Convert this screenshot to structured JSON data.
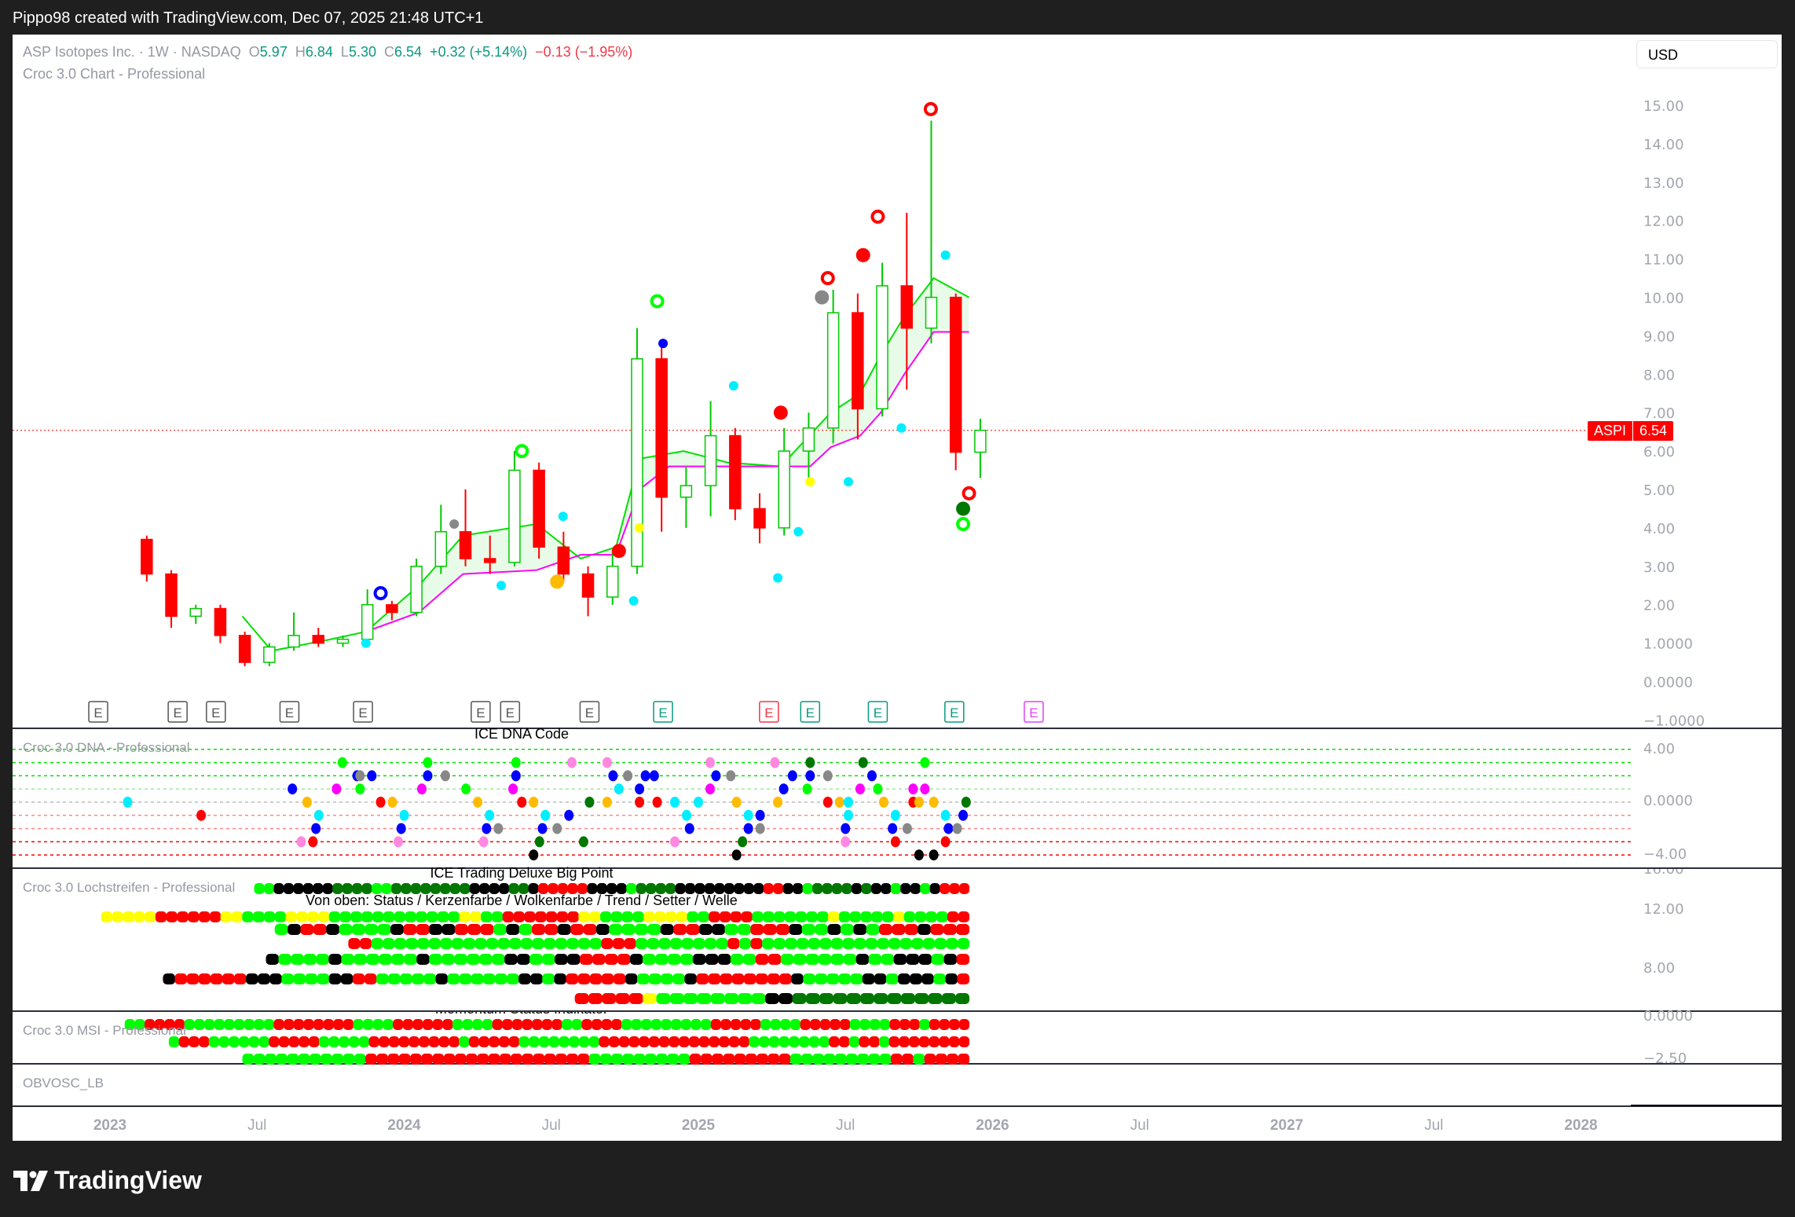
{
  "header": {
    "text": "Pippo98 created with TradingView.com, Dec 07, 2025 21:48 UTC+1"
  },
  "legend": {
    "symbol": "ASP Isotopes Inc. · 1W · NASDAQ",
    "o_label": "O",
    "o": "5.97",
    "h_label": "H",
    "h": "6.84",
    "l_label": "L",
    "l": "5.30",
    "c_label": "C",
    "c": "6.54",
    "change": "+0.32 (+5.14%)",
    "change2": "−0.13 (−1.95%)",
    "indicator": "Croc 3.0 Chart - Professional"
  },
  "currency": "USD",
  "price_tag": {
    "symbol": "ASPI",
    "price": "6.54"
  },
  "panes": {
    "dna": {
      "label": "Croc 3.0 DNA - Professional",
      "title": "ICE DNA Code",
      "ticks": [
        "4.00",
        "0.0000",
        "−4.00"
      ]
    },
    "strip": {
      "label": "Croc 3.0 Lochstreifen - Professional",
      "title": "ICE Trading Deluxe Big Point",
      "subtitle": "Von oben: Status / Kerzenfarbe / Wolkenfarbe / Trend / Setter / Welle",
      "ticks": [
        "16.00",
        "12.00",
        "8.00"
      ]
    },
    "msi": {
      "label": "Croc 3.0 MSI - Professional",
      "title": "Momentum Status Indikator",
      "ticks": [
        "0.0000",
        "−2.50"
      ]
    },
    "obv": {
      "label": "OBVOSC_LB"
    }
  },
  "brand": "TradingView",
  "colors": {
    "up": "#089981",
    "down": "#f23645",
    "candle_up": "#00c800",
    "candle_down": "#ff0000",
    "cloud_top": "#00e000",
    "cloud_bottom": "#ff00ff",
    "cloud_fill": "#e8fbe8",
    "L": "#00ff00",
    "R": "#ff0000",
    "K": "#000000",
    "D": "#007700",
    "Y": "#ffff00",
    "B": "#0000ff",
    "G": "#888888",
    "M": "#ff00ff",
    "P": "#ff88e0",
    "C": "#00eeff",
    "O": "#ffbb00"
  },
  "chart_data": {
    "type": "candlestick",
    "interval": "1W (shown approximated monthly)",
    "y_ticks": [
      "15.00",
      "14.00",
      "13.00",
      "12.00",
      "11.00",
      "10.00",
      "9.00",
      "8.00",
      "7.00",
      "6.00",
      "5.00",
      "4.00",
      "3.00",
      "2.00",
      "1.0000",
      "0.0000",
      "−1.0000"
    ],
    "ylim": [
      -1,
      15
    ],
    "x_ticks": [
      {
        "t": 2023,
        "label": "2023"
      },
      {
        "t": 2023.5,
        "label": "Jul"
      },
      {
        "t": 2024,
        "label": "2024"
      },
      {
        "t": 2024.5,
        "label": "Jul"
      },
      {
        "t": 2025,
        "label": "2025"
      },
      {
        "t": 2025.5,
        "label": "Jul"
      },
      {
        "t": 2026,
        "label": "2026"
      },
      {
        "t": 2026.5,
        "label": "Jul"
      },
      {
        "t": 2027,
        "label": "2027"
      },
      {
        "t": 2027.5,
        "label": "Jul"
      },
      {
        "t": 2028,
        "label": "2028"
      }
    ],
    "last_price": 6.54,
    "ohlc": [
      [
        "2023-02",
        3.7,
        3.8,
        2.6,
        2.8
      ],
      [
        "2023-03",
        2.8,
        2.9,
        1.4,
        1.7
      ],
      [
        "2023-04",
        1.7,
        2.0,
        1.5,
        1.9
      ],
      [
        "2023-05",
        1.9,
        2.0,
        1.0,
        1.2
      ],
      [
        "2023-06",
        1.2,
        1.3,
        0.4,
        0.5
      ],
      [
        "2023-07",
        0.5,
        1.0,
        0.4,
        0.9
      ],
      [
        "2023-08",
        0.9,
        1.8,
        0.8,
        1.2
      ],
      [
        "2023-09",
        1.2,
        1.4,
        0.9,
        1.0
      ],
      [
        "2023-10",
        1.0,
        1.2,
        0.9,
        1.1
      ],
      [
        "2023-11",
        1.1,
        2.4,
        1.0,
        2.0
      ],
      [
        "2023-12",
        2.0,
        2.1,
        1.6,
        1.8
      ],
      [
        "2024-01",
        1.8,
        3.2,
        1.7,
        3.0
      ],
      [
        "2024-02",
        3.0,
        4.6,
        2.8,
        3.9
      ],
      [
        "2024-03",
        3.9,
        5.0,
        3.0,
        3.2
      ],
      [
        "2024-04",
        3.2,
        3.8,
        2.8,
        3.1
      ],
      [
        "2024-05",
        3.1,
        6.0,
        3.0,
        5.5
      ],
      [
        "2024-06",
        5.5,
        5.7,
        3.2,
        3.5
      ],
      [
        "2024-07",
        3.5,
        3.9,
        2.6,
        2.8
      ],
      [
        "2024-08",
        2.8,
        3.0,
        1.7,
        2.2
      ],
      [
        "2024-09",
        2.2,
        3.4,
        2.0,
        3.0
      ],
      [
        "2024-10",
        3.0,
        9.2,
        2.8,
        8.4
      ],
      [
        "2024-11",
        8.4,
        8.9,
        3.9,
        4.8
      ],
      [
        "2024-12",
        4.8,
        5.6,
        4.0,
        5.1
      ],
      [
        "2025-01",
        5.1,
        7.3,
        4.3,
        6.4
      ],
      [
        "2025-02",
        6.4,
        6.6,
        4.2,
        4.5
      ],
      [
        "2025-03",
        4.5,
        4.9,
        3.6,
        4.0
      ],
      [
        "2025-04",
        4.0,
        6.6,
        3.8,
        6.0
      ],
      [
        "2025-05",
        6.0,
        7.0,
        5.2,
        6.6
      ],
      [
        "2025-06",
        6.6,
        10.2,
        6.2,
        9.6
      ],
      [
        "2025-07",
        9.6,
        10.1,
        6.3,
        7.1
      ],
      [
        "2025-08",
        7.1,
        10.9,
        6.9,
        10.3
      ],
      [
        "2025-09",
        10.3,
        12.2,
        7.6,
        9.2
      ],
      [
        "2025-10",
        9.2,
        14.6,
        8.8,
        10.0
      ],
      [
        "2025-11",
        10.0,
        10.1,
        5.5,
        5.97
      ],
      [
        "2025-12",
        5.97,
        6.84,
        5.3,
        6.54
      ]
    ],
    "cloud_top": [
      [
        2023.45,
        1.7
      ],
      [
        2023.55,
        0.8
      ],
      [
        2023.75,
        1.1
      ],
      [
        2023.87,
        1.3
      ],
      [
        2024.05,
        2.5
      ],
      [
        2024.2,
        3.8
      ],
      [
        2024.45,
        4.1
      ],
      [
        2024.6,
        3.2
      ],
      [
        2024.72,
        3.5
      ],
      [
        2024.8,
        5.8
      ],
      [
        2024.95,
        6.0
      ],
      [
        2025.1,
        5.7
      ],
      [
        2025.28,
        5.6
      ],
      [
        2025.45,
        7.0
      ],
      [
        2025.55,
        7.5
      ],
      [
        2025.62,
        8.5
      ],
      [
        2025.7,
        9.5
      ],
      [
        2025.8,
        10.5
      ],
      [
        2025.92,
        10.0
      ]
    ],
    "cloud_bottom": [
      [
        2023.87,
        1.3
      ],
      [
        2024.05,
        1.8
      ],
      [
        2024.2,
        2.8
      ],
      [
        2024.45,
        2.9
      ],
      [
        2024.6,
        3.3
      ],
      [
        2024.72,
        3.3
      ],
      [
        2024.8,
        5.0
      ],
      [
        2024.9,
        5.6
      ],
      [
        2025.38,
        5.6
      ],
      [
        2025.45,
        6.1
      ],
      [
        2025.55,
        6.4
      ],
      [
        2025.62,
        7.0
      ],
      [
        2025.7,
        8.0
      ],
      [
        2025.8,
        9.1
      ],
      [
        2025.92,
        9.1
      ]
    ],
    "markers": [
      [
        2023.92,
        2.3,
        "B",
        "ring"
      ],
      [
        2024.17,
        4.1,
        "G",
        "dot"
      ],
      [
        2024.4,
        6.0,
        "L",
        "ring"
      ],
      [
        2024.52,
        2.6,
        "O",
        "big"
      ],
      [
        2024.73,
        3.4,
        "R",
        "big"
      ],
      [
        2024.86,
        9.9,
        "L",
        "ring"
      ],
      [
        2024.88,
        8.8,
        "B",
        "dot"
      ],
      [
        2025.28,
        7.0,
        "R",
        "big"
      ],
      [
        2025.42,
        10.0,
        "G",
        "big"
      ],
      [
        2025.44,
        10.5,
        "R",
        "ring"
      ],
      [
        2025.56,
        11.1,
        "R",
        "big"
      ],
      [
        2025.61,
        12.1,
        "R",
        "ring"
      ],
      [
        2025.79,
        14.9,
        "R",
        "ring"
      ],
      [
        2025.84,
        11.1,
        "C",
        "dot"
      ],
      [
        2023.87,
        1.0,
        "C",
        "dot"
      ],
      [
        2024.33,
        2.5,
        "C",
        "dot"
      ],
      [
        2024.54,
        4.3,
        "C",
        "dot"
      ],
      [
        2024.78,
        2.1,
        "C",
        "dot"
      ],
      [
        2025.12,
        7.7,
        "C",
        "dot"
      ],
      [
        2025.27,
        2.7,
        "C",
        "dot"
      ],
      [
        2025.34,
        3.9,
        "C",
        "dot"
      ],
      [
        2025.51,
        5.2,
        "C",
        "dot"
      ],
      [
        2025.69,
        6.6,
        "C",
        "dot"
      ],
      [
        2025.38,
        5.2,
        "Y",
        "dot"
      ],
      [
        2024.8,
        4.0,
        "Y",
        "dot"
      ],
      [
        2025.92,
        4.9,
        "R",
        "ring"
      ],
      [
        2025.9,
        4.5,
        "D",
        "big"
      ],
      [
        2025.9,
        4.1,
        "L",
        "ring"
      ]
    ],
    "earnings": [
      [
        2022.96,
        "E",
        "#555"
      ],
      [
        2023.23,
        "E",
        "#555"
      ],
      [
        2023.36,
        "E",
        "#555"
      ],
      [
        2023.61,
        "E",
        "#555"
      ],
      [
        2023.86,
        "E",
        "#555"
      ],
      [
        2024.26,
        "E",
        "#555"
      ],
      [
        2024.36,
        "E",
        "#555"
      ],
      [
        2024.63,
        "E",
        "#555"
      ],
      [
        2024.88,
        "E",
        "#089981"
      ],
      [
        2025.24,
        "E",
        "#f23645"
      ],
      [
        2025.38,
        "E",
        "#089981"
      ],
      [
        2025.61,
        "E",
        "#089981"
      ],
      [
        2025.87,
        "E",
        "#089981"
      ],
      [
        2026.14,
        "E",
        "#e040fb"
      ]
    ],
    "dna_dots": [
      [
        2023.79,
        3,
        "L"
      ],
      [
        2024.08,
        3,
        "L"
      ],
      [
        2024.38,
        3,
        "L"
      ],
      [
        2024.57,
        3,
        "P"
      ],
      [
        2024.69,
        3,
        "P"
      ],
      [
        2025.04,
        3,
        "P"
      ],
      [
        2025.26,
        3,
        "P"
      ],
      [
        2025.38,
        3,
        "D"
      ],
      [
        2025.56,
        3,
        "D"
      ],
      [
        2025.77,
        3,
        "L"
      ],
      [
        2023.84,
        2,
        "B"
      ],
      [
        2023.89,
        2,
        "B"
      ],
      [
        2023.85,
        2,
        "G"
      ],
      [
        2024.08,
        2,
        "B"
      ],
      [
        2024.14,
        2,
        "G"
      ],
      [
        2024.38,
        2,
        "B"
      ],
      [
        2024.71,
        2,
        "B"
      ],
      [
        2024.76,
        2,
        "G"
      ],
      [
        2024.82,
        2,
        "B"
      ],
      [
        2024.85,
        2,
        "B"
      ],
      [
        2025.06,
        2,
        "B"
      ],
      [
        2025.11,
        2,
        "G"
      ],
      [
        2025.32,
        2,
        "B"
      ],
      [
        2025.38,
        2,
        "B"
      ],
      [
        2025.44,
        2,
        "G"
      ],
      [
        2025.59,
        2,
        "B"
      ],
      [
        2023.62,
        1,
        "B"
      ],
      [
        2023.77,
        1,
        "M"
      ],
      [
        2023.85,
        1,
        "L"
      ],
      [
        2024.06,
        1,
        "M"
      ],
      [
        2024.21,
        1,
        "L"
      ],
      [
        2024.37,
        1,
        "M"
      ],
      [
        2024.73,
        1,
        "C"
      ],
      [
        2024.8,
        1,
        "B"
      ],
      [
        2025.04,
        1,
        "M"
      ],
      [
        2025.29,
        1,
        "B"
      ],
      [
        2025.37,
        1,
        "L"
      ],
      [
        2025.55,
        1,
        "M"
      ],
      [
        2025.61,
        1,
        "L"
      ],
      [
        2025.73,
        1,
        "M"
      ],
      [
        2025.77,
        1,
        "M"
      ],
      [
        2023.06,
        0,
        "C"
      ],
      [
        2023.67,
        0,
        "O"
      ],
      [
        2023.92,
        0,
        "R"
      ],
      [
        2023.96,
        0,
        "O"
      ],
      [
        2024.25,
        0,
        "O"
      ],
      [
        2024.4,
        0,
        "R"
      ],
      [
        2024.44,
        0,
        "O"
      ],
      [
        2024.63,
        0,
        "D"
      ],
      [
        2024.69,
        0,
        "O"
      ],
      [
        2024.8,
        0,
        "R"
      ],
      [
        2024.86,
        0,
        "R"
      ],
      [
        2024.92,
        0,
        "C"
      ],
      [
        2025.0,
        0,
        "C"
      ],
      [
        2025.13,
        0,
        "O"
      ],
      [
        2025.27,
        0,
        "O"
      ],
      [
        2025.44,
        0,
        "R"
      ],
      [
        2025.48,
        0,
        "O"
      ],
      [
        2025.51,
        0,
        "C"
      ],
      [
        2025.63,
        0,
        "O"
      ],
      [
        2025.73,
        0,
        "R"
      ],
      [
        2025.75,
        0,
        "O"
      ],
      [
        2025.8,
        0,
        "O"
      ],
      [
        2025.91,
        0,
        "D"
      ],
      [
        2023.31,
        -1,
        "R"
      ],
      [
        2023.71,
        -1,
        "C"
      ],
      [
        2024.0,
        -1,
        "C"
      ],
      [
        2024.29,
        -1,
        "C"
      ],
      [
        2024.48,
        -1,
        "C"
      ],
      [
        2024.56,
        -1,
        "B"
      ],
      [
        2024.96,
        -1,
        "C"
      ],
      [
        2025.17,
        -1,
        "C"
      ],
      [
        2025.21,
        -1,
        "B"
      ],
      [
        2025.51,
        -1,
        "C"
      ],
      [
        2025.67,
        -1,
        "C"
      ],
      [
        2025.84,
        -1,
        "C"
      ],
      [
        2025.9,
        -1,
        "B"
      ],
      [
        2023.7,
        -2,
        "B"
      ],
      [
        2023.99,
        -2,
        "B"
      ],
      [
        2024.28,
        -2,
        "B"
      ],
      [
        2024.32,
        -2,
        "G"
      ],
      [
        2024.47,
        -2,
        "B"
      ],
      [
        2024.52,
        -2,
        "G"
      ],
      [
        2024.97,
        -2,
        "B"
      ],
      [
        2025.17,
        -2,
        "B"
      ],
      [
        2025.21,
        -2,
        "G"
      ],
      [
        2025.5,
        -2,
        "B"
      ],
      [
        2025.66,
        -2,
        "B"
      ],
      [
        2025.71,
        -2,
        "G"
      ],
      [
        2025.85,
        -2,
        "B"
      ],
      [
        2025.88,
        -2,
        "G"
      ],
      [
        2023.65,
        -3,
        "P"
      ],
      [
        2023.69,
        -3,
        "R"
      ],
      [
        2023.98,
        -3,
        "P"
      ],
      [
        2024.27,
        -3,
        "P"
      ],
      [
        2024.46,
        -3,
        "D"
      ],
      [
        2024.61,
        -3,
        "D"
      ],
      [
        2024.92,
        -3,
        "P"
      ],
      [
        2025.15,
        -3,
        "D"
      ],
      [
        2025.5,
        -3,
        "P"
      ],
      [
        2025.67,
        -3,
        "R"
      ],
      [
        2025.84,
        -3,
        "R"
      ],
      [
        2024.44,
        -4,
        "K"
      ],
      [
        2025.13,
        -4,
        "K"
      ],
      [
        2025.75,
        -4,
        "K"
      ],
      [
        2025.8,
        -4,
        "K"
      ]
    ],
    "strip_rows": [
      {
        "start": 2023.49,
        "end": 2025.92,
        "codes": "LLKKKKKKDDDDLLDDDDDDDDKKKKDDKRRRRRKKKKLDDDDKKKKKKKKKRRKKLDDDDKDKKLKKLKRRR"
      },
      {
        "start": 2022.97,
        "end": 2025.92,
        "codes": "YYYYYRRRRRRYYLLLLYYYYLLLLLLLLLLLLYYLLRRRRRRRYYLLLLYYYYLLRRRRLLLLLLLYLLLLLYLLLLRR"
      },
      {
        "start": 2023.56,
        "end": 2025.92,
        "codes": "LKRRKLLLLKRRKKRRRLKLRRKRRKLLLLKRRKKLLRRRKLLKLKLRRRKRRR"
      },
      {
        "start": 2023.81,
        "end": 2025.92,
        "codes": "RRLLLLLLLLLLLLLLLLLLLLRRRLLLLLLLLRLRLLLLLLLLLLLLLLLLLL"
      },
      {
        "start": 2023.53,
        "end": 2025.92,
        "codes": "KLLLLKLLLLLLKLLLLLLKKLLKKRRRRKLLLLKKKLLRRLLLLLLKLLKKKLKR"
      },
      {
        "start": 2023.18,
        "end": 2025.92,
        "codes": "KRRRRRRKKKLLLLKKRRLLLLLKLLLLLLKKLKRRRRRKLLLLKRRRRRRRRKLLLLLKKLKKKLKR"
      },
      {
        "start": 2024.58,
        "end": 2025.92,
        "codes": "RRRRRYLLLLLLLLKKDDDDDDDDDDDDD"
      }
    ],
    "msi_rows": [
      {
        "start": 2023.05,
        "end": 2025.92,
        "codes": "LLRRRRLLLLLLLLLRRRRRRRRLLLLRRRRRRLLLLRRRRRRRLLRRRRLLLLLLLLLRRRRRLLLLRRRRRLLLLRRRLRRRR"
      },
      {
        "start": 2023.2,
        "end": 2025.92,
        "codes": "LRRRLLLLLLRRRRRLLLLLRRRRRRRRRLRRRRRLLLLLLLLRRRRRRRRRRRRRRRLLLLLLLLRRLRRLRRRRRRRR"
      },
      {
        "start": 2023.45,
        "end": 2025.92,
        "codes": "LLLLLLLLLLLRRRRRRRRRRRRRRRRRRRRLLLLLLLLLRRRRRRRRRLLLLLLLLLRRLRRRR"
      }
    ]
  }
}
